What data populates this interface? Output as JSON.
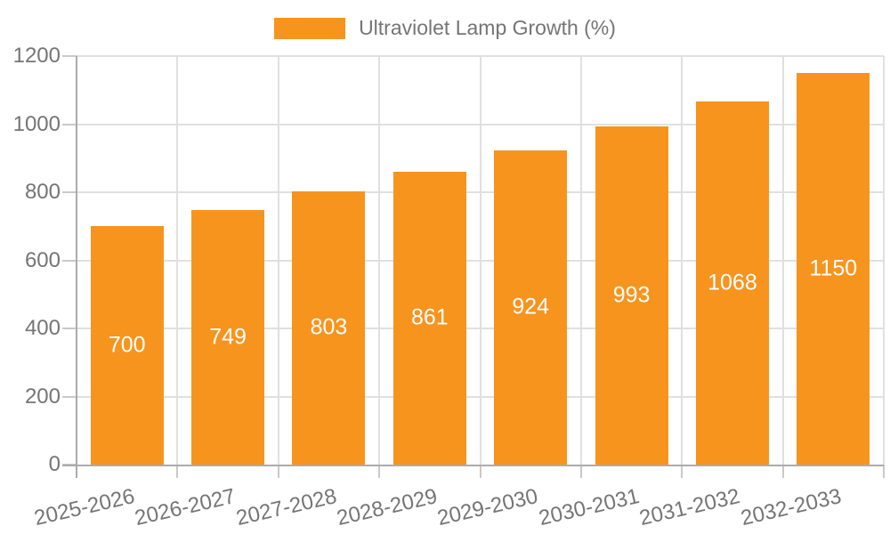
{
  "chart_data": {
    "type": "bar",
    "title": "Ultraviolet Lamp Growth (%)",
    "categories": [
      "2025-2026",
      "2026-2027",
      "2027-2028",
      "2028-2029",
      "2029-2030",
      "2030-2031",
      "2031-2032",
      "2032-2033"
    ],
    "values": [
      700,
      749,
      803,
      861,
      924,
      993,
      1068,
      1150
    ],
    "bar_labels": [
      "700",
      "749",
      "803",
      "861",
      "924",
      "993",
      "1068",
      "1150"
    ],
    "ylim": [
      0,
      1200
    ],
    "yticks": [
      0,
      200,
      400,
      600,
      800,
      1000,
      1200
    ],
    "ytick_labels": [
      "0",
      "200",
      "400",
      "600",
      "800",
      "1000",
      "1200"
    ],
    "xlabel": "",
    "ylabel": "",
    "grid": true,
    "legend_position": "top",
    "colors": {
      "bar": "#F7941E",
      "bar_label": "#FFFFFF",
      "axis_text": "#757575",
      "gridline": "#E0E0E0",
      "axis_line": "#ABABAB",
      "tick": "#C9C9C9",
      "background": "#FFFFFF"
    }
  }
}
